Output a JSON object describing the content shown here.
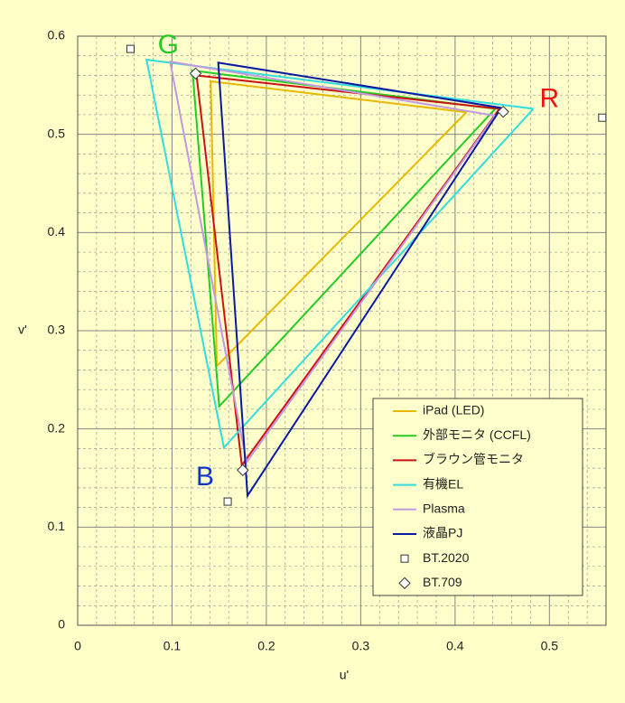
{
  "chart_data": {
    "type": "line",
    "xlabel": "u'",
    "ylabel": "v'",
    "xlim": [
      0,
      0.56
    ],
    "ylim": [
      0,
      0.6
    ],
    "xticks": [
      0,
      0.1,
      0.2,
      0.3,
      0.4,
      0.5
    ],
    "yticks": [
      0,
      0.1,
      0.2,
      0.3,
      0.4,
      0.5,
      0.6
    ],
    "grid": true,
    "minor_grid_step": 0.02,
    "legend": "lower right",
    "annotations": [
      {
        "text": "G",
        "x": 0.096,
        "y": 0.59,
        "color": "#22cc22"
      },
      {
        "text": "R",
        "x": 0.5,
        "y": 0.535,
        "color": "#ee1111"
      },
      {
        "text": "B",
        "x": 0.135,
        "y": 0.15,
        "color": "#1133cc"
      }
    ],
    "series": [
      {
        "name": "iPad (LED)",
        "color": "#e8b800",
        "x": [
          0.412,
          0.141,
          0.1475,
          0.412
        ],
        "y": [
          0.5225,
          0.554,
          0.264,
          0.5225
        ]
      },
      {
        "name": "外部モニタ (CCFL)",
        "color": "#22cc22",
        "x": [
          0.4425,
          0.1217,
          0.15,
          0.4425
        ],
        "y": [
          0.526,
          0.565,
          0.223,
          0.526
        ]
      },
      {
        "name": "ブラウン管モニタ",
        "color": "#cc1111",
        "x": [
          0.447,
          0.126,
          0.174,
          0.447
        ],
        "y": [
          0.526,
          0.56,
          0.163,
          0.526
        ]
      },
      {
        "name": "有機EL",
        "color": "#33dddd",
        "x": [
          0.483,
          0.073,
          0.155,
          0.483
        ],
        "y": [
          0.526,
          0.576,
          0.181,
          0.526
        ]
      },
      {
        "name": "Plasma",
        "color": "#c099e0",
        "x": [
          0.4425,
          0.098,
          0.179,
          0.4425
        ],
        "y": [
          0.519,
          0.574,
          0.166,
          0.519
        ]
      },
      {
        "name": "液晶PJ",
        "color": "#0a1aa0",
        "x": [
          0.449,
          0.149,
          0.18,
          0.449
        ],
        "y": [
          0.527,
          0.573,
          0.132,
          0.527
        ]
      },
      {
        "name": "BT.2020",
        "color": "#333333",
        "marker": "square",
        "x": [
          0.556,
          0.056,
          0.159
        ],
        "y": [
          0.517,
          0.587,
          0.126
        ]
      },
      {
        "name": "BT.709",
        "color": "#333333",
        "marker": "diamond",
        "x": [
          0.451,
          0.125,
          0.175
        ],
        "y": [
          0.523,
          0.562,
          0.158
        ]
      }
    ]
  }
}
